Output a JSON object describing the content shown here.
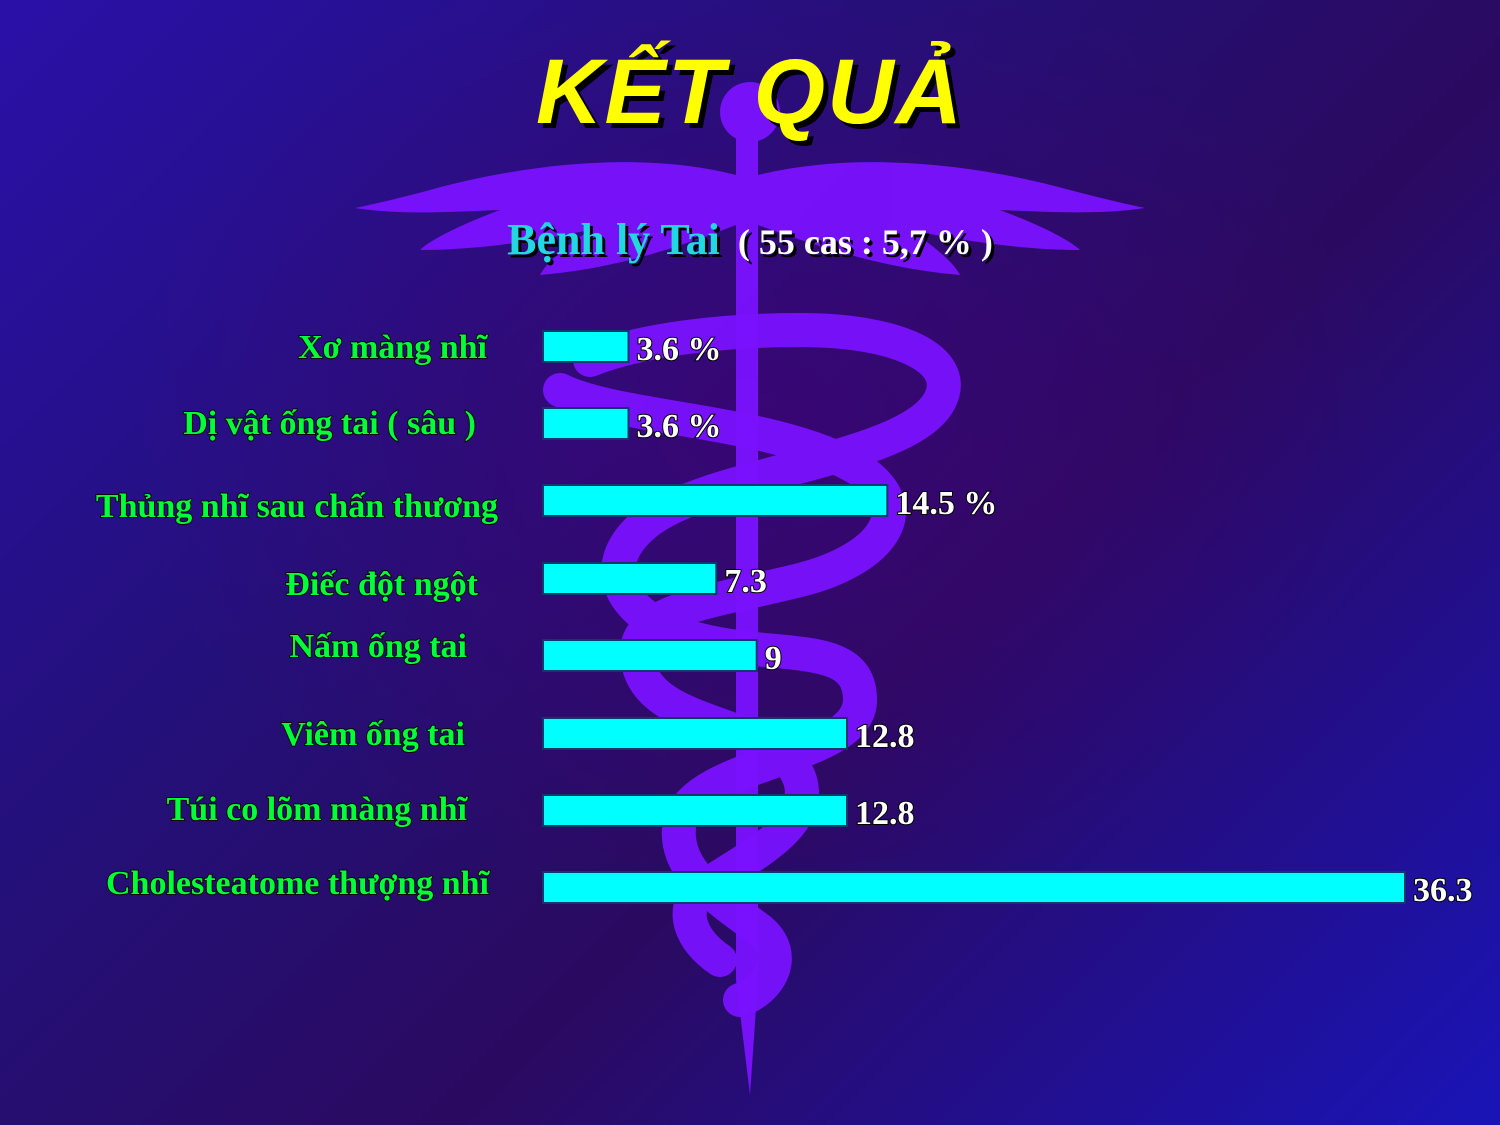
{
  "slide": {
    "title": "KẾT QUẢ",
    "subtitle_main": "Bệnh lý Tai",
    "subtitle_extra": "( 55 cas : 5,7 % )"
  },
  "colors": {
    "bar": "#00ffff",
    "category_text": "#00ff3a",
    "value_text": "#ffffff",
    "title": "#ffff00",
    "subtitle": "#22d7e0",
    "emblem": "#7a12ff"
  },
  "icons": {
    "background": "caduceus-icon"
  },
  "chart_data": {
    "type": "bar",
    "orientation": "horizontal",
    "categories": [
      "Xơ màng nhĩ",
      "Dị vật ống tai ( sâu )",
      "Thủng nhĩ sau chấn thương",
      "Điếc đột ngột",
      "Nấm ống tai",
      "Viêm ống tai",
      "Túi co lõm màng nhĩ",
      "Cholesteatome thượng nhĩ"
    ],
    "values": [
      3.6,
      3.6,
      14.5,
      7.3,
      9,
      12.8,
      12.8,
      36.3
    ],
    "value_labels": [
      "3.6 %",
      "3.6 %",
      "14.5 %",
      "7.3",
      "9",
      "12.8",
      "12.8",
      "36.3"
    ],
    "xlim": [
      0,
      36.3
    ],
    "grid": false,
    "legend": "none"
  }
}
